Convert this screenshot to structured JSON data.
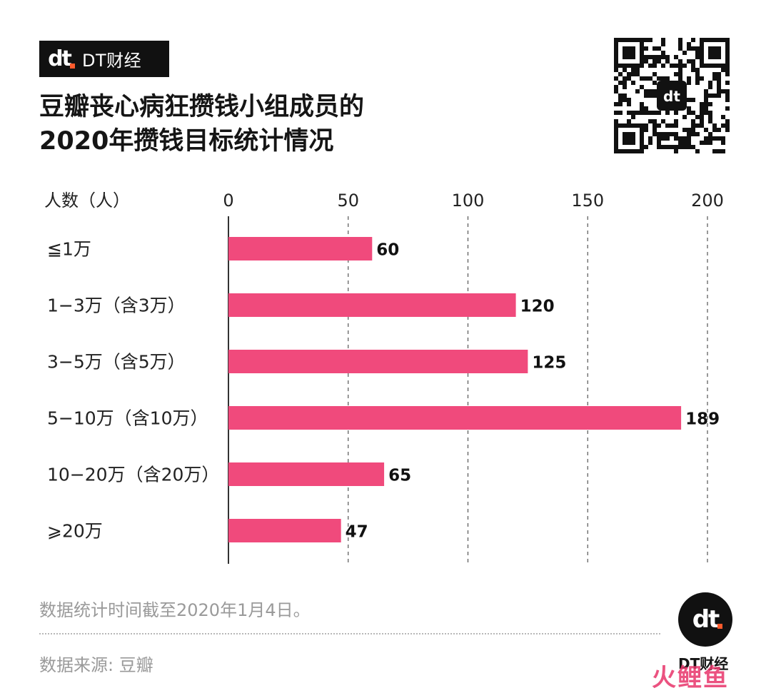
{
  "brand": {
    "logo_text": "dt",
    "name": "DT财经",
    "accent_color": "#ff5a2c"
  },
  "title_lines": [
    "豆瓣丧心病狂攒钱小组成员的",
    "2020年攒钱目标统计情况"
  ],
  "qr_icon": "qr-code-icon",
  "chart_data": {
    "type": "bar",
    "orientation": "horizontal",
    "ylabel": "人数（人）",
    "categories": [
      "≦1万",
      "1−3万（含3万）",
      "3−5万（含5万）",
      "5−10万（含10万）",
      "10−20万（含20万）",
      "⩾20万"
    ],
    "values": [
      60,
      120,
      125,
      189,
      65,
      47
    ],
    "xlim": [
      0,
      200
    ],
    "ticks": [
      0,
      50,
      100,
      150,
      200
    ],
    "bar_color": "#f04a7c",
    "grid": "dashed vertical"
  },
  "footnote": "数据统计时间截至2020年1月4日。",
  "source": "数据来源: 豆瓣",
  "round_logo_text": "dt",
  "round_brand": "DT财经",
  "corner_mark": "火鲤鱼"
}
